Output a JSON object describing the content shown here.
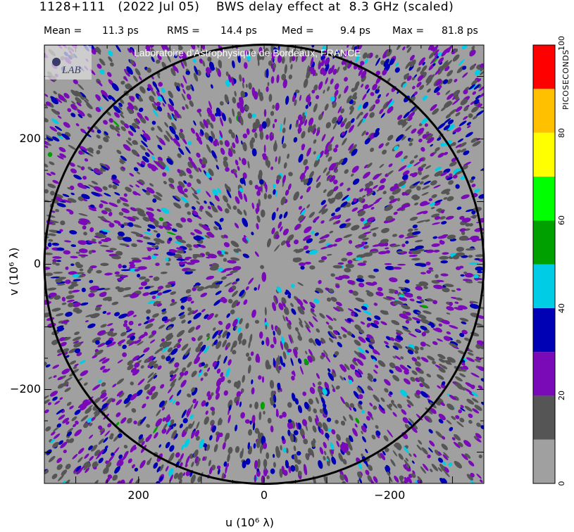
{
  "header": {
    "title": "1128+111   (2022 Jul 05)    BWS delay effect at  8.3 GHz (scaled)",
    "stats": [
      {
        "label": "Mean =",
        "value": "11.3 ps"
      },
      {
        "label": "RMS =",
        "value": "14.4 ps"
      },
      {
        "label": "Med =",
        "value": "9.4 ps"
      },
      {
        "label": "Max =",
        "value": "81.8 ps"
      }
    ]
  },
  "watermark": "Laboratoire d'Astrophysique de Bordeaux, FRANCE",
  "logo_text": "LAB",
  "chart_data": {
    "type": "heatmap",
    "title": "BWS delay effect at 8.3 GHz (scaled)",
    "xlabel": "u  (10⁶ λ)",
    "ylabel": "v  (10⁶ λ)",
    "xlim": [
      350,
      -350
    ],
    "ylim": [
      -350,
      350
    ],
    "x_ticks": [
      200,
      0,
      -200
    ],
    "x_tick_labels": [
      "200",
      "0",
      "−200"
    ],
    "y_ticks": [
      200,
      0,
      -200
    ],
    "y_tick_labels": [
      "200",
      "0",
      "−200"
    ],
    "circle_radius": 350,
    "colorbar": {
      "title": "PICOSECONDS",
      "range": [
        0,
        100
      ],
      "tick_values": [
        0,
        20,
        40,
        60,
        80,
        100
      ],
      "tick_labels": [
        "0",
        "20",
        "40",
        "60",
        "80",
        "100"
      ],
      "levels": [
        {
          "from": 0,
          "to": 10,
          "color": "#a0a0a0"
        },
        {
          "from": 10,
          "to": 20,
          "color": "#555555"
        },
        {
          "from": 20,
          "to": 30,
          "color": "#7a0ab8"
        },
        {
          "from": 30,
          "to": 40,
          "color": "#0000b4"
        },
        {
          "from": 40,
          "to": 50,
          "color": "#00cce6"
        },
        {
          "from": 50,
          "to": 60,
          "color": "#00a000"
        },
        {
          "from": 60,
          "to": 70,
          "color": "#00ff00"
        },
        {
          "from": 70,
          "to": 80,
          "color": "#ffff00"
        },
        {
          "from": 80,
          "to": 90,
          "color": "#ffc000"
        },
        {
          "from": 90,
          "to": 100,
          "color": "#ff0000"
        }
      ]
    },
    "background_color": "#a0a0a0"
  }
}
